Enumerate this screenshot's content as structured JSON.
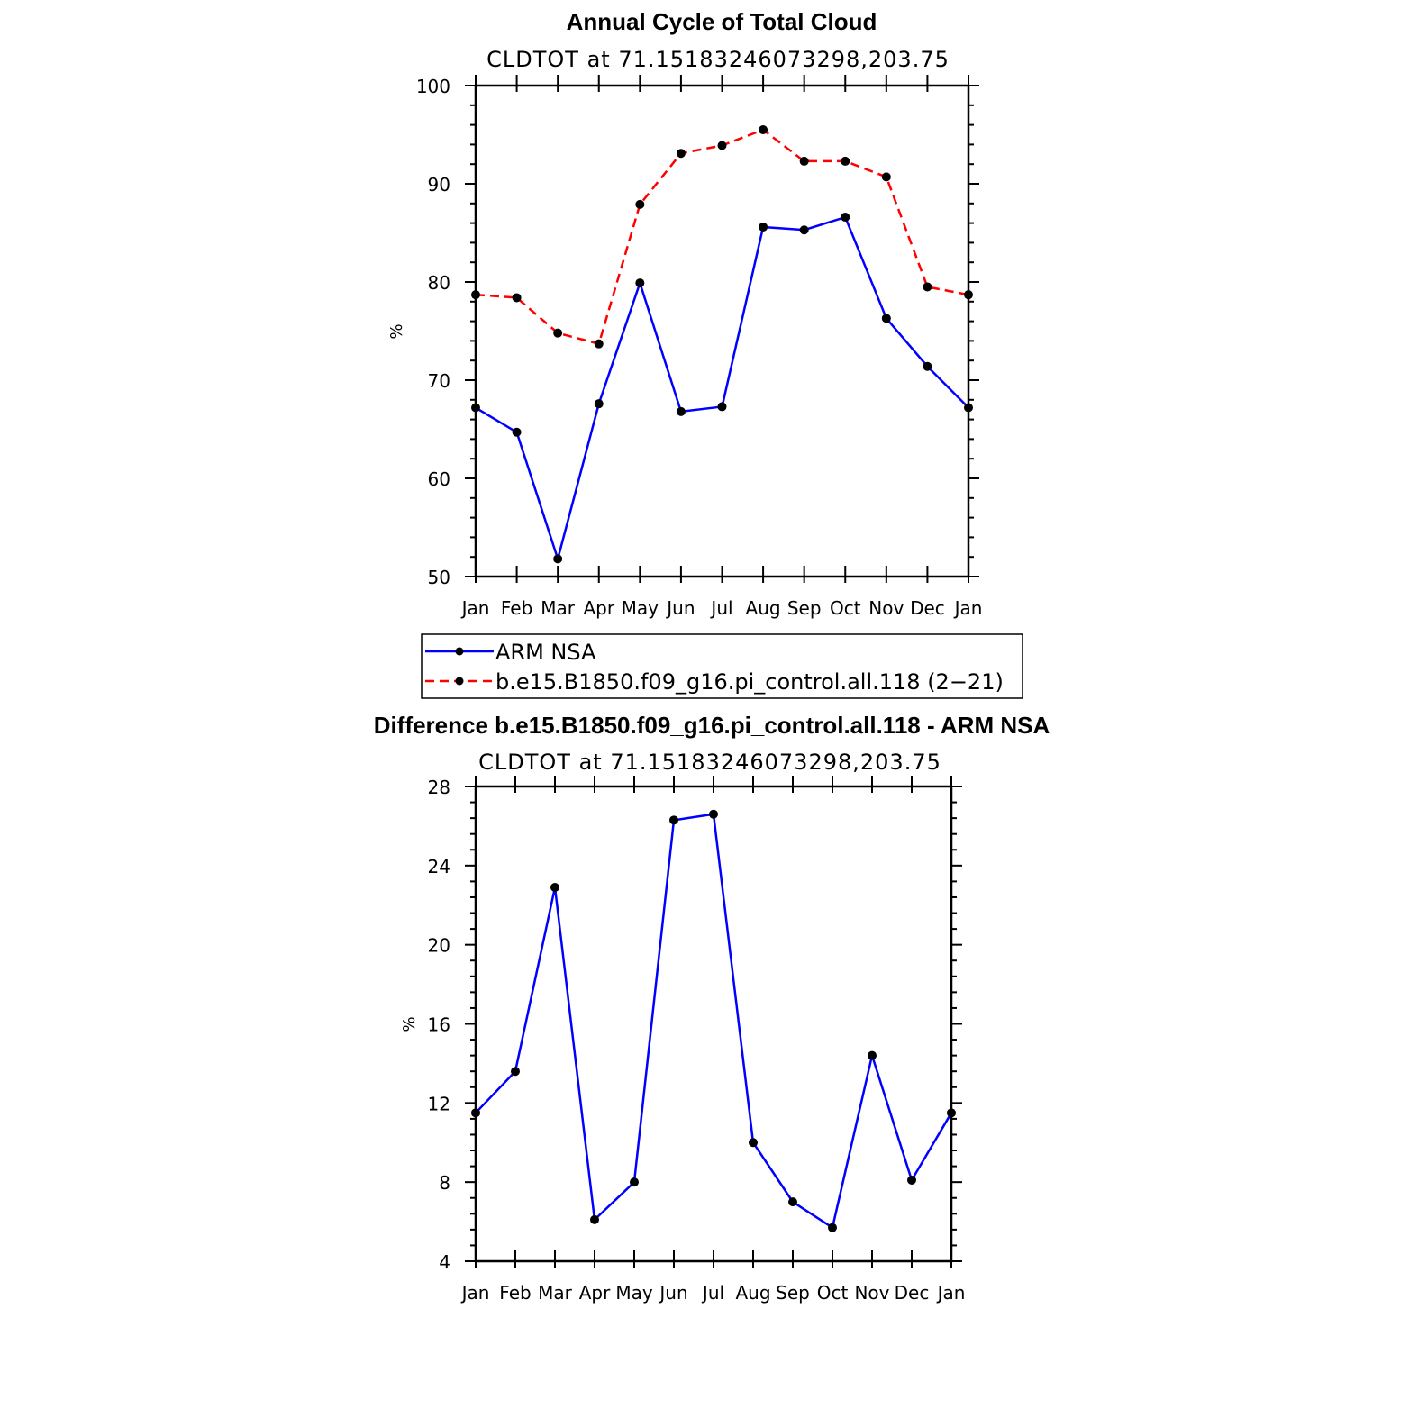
{
  "chart_data": [
    {
      "type": "line",
      "title": "Annual Cycle of Total Cloud",
      "subtitle": "CLDTOT at 71.15183246073298,203.75",
      "xlabel": "",
      "ylabel": "%",
      "categories": [
        "Jan",
        "Feb",
        "Mar",
        "Apr",
        "May",
        "Jun",
        "Jul",
        "Aug",
        "Sep",
        "Oct",
        "Nov",
        "Dec",
        "Jan"
      ],
      "ylim": [
        50,
        100
      ],
      "yticks": [
        50,
        60,
        70,
        80,
        90,
        100
      ],
      "grid": false,
      "legend_position": "below",
      "series": [
        {
          "name": "ARM NSA",
          "color": "#0000ff",
          "dash": "solid",
          "values": [
            67.2,
            64.7,
            51.8,
            67.6,
            79.9,
            66.8,
            67.3,
            85.6,
            85.3,
            86.6,
            76.3,
            71.4,
            67.2
          ]
        },
        {
          "name": "b.e15.B1850.f09_g16.pi_control.all.118 (2−21)",
          "color": "#ff0000",
          "dash": "dashed",
          "values": [
            78.7,
            78.4,
            74.8,
            73.7,
            87.9,
            93.1,
            93.9,
            95.5,
            92.3,
            92.3,
            90.7,
            79.5,
            78.7
          ]
        }
      ]
    },
    {
      "type": "line",
      "title": "Difference b.e15.B1850.f09_g16.pi_control.all.118 - ARM NSA",
      "subtitle": "CLDTOT at 71.15183246073298,203.75",
      "xlabel": "",
      "ylabel": "%",
      "categories": [
        "Jan",
        "Feb",
        "Mar",
        "Apr",
        "May",
        "Jun",
        "Jul",
        "Aug",
        "Sep",
        "Oct",
        "Nov",
        "Dec",
        "Jan"
      ],
      "ylim": [
        4,
        28
      ],
      "yticks": [
        4,
        8,
        12,
        16,
        20,
        24,
        28
      ],
      "grid": false,
      "series": [
        {
          "color": "#0000ff",
          "dash": "solid",
          "values": [
            11.5,
            13.6,
            22.9,
            6.1,
            8.0,
            26.3,
            26.6,
            10.0,
            7.0,
            5.7,
            14.4,
            8.1,
            11.5
          ]
        }
      ]
    }
  ]
}
